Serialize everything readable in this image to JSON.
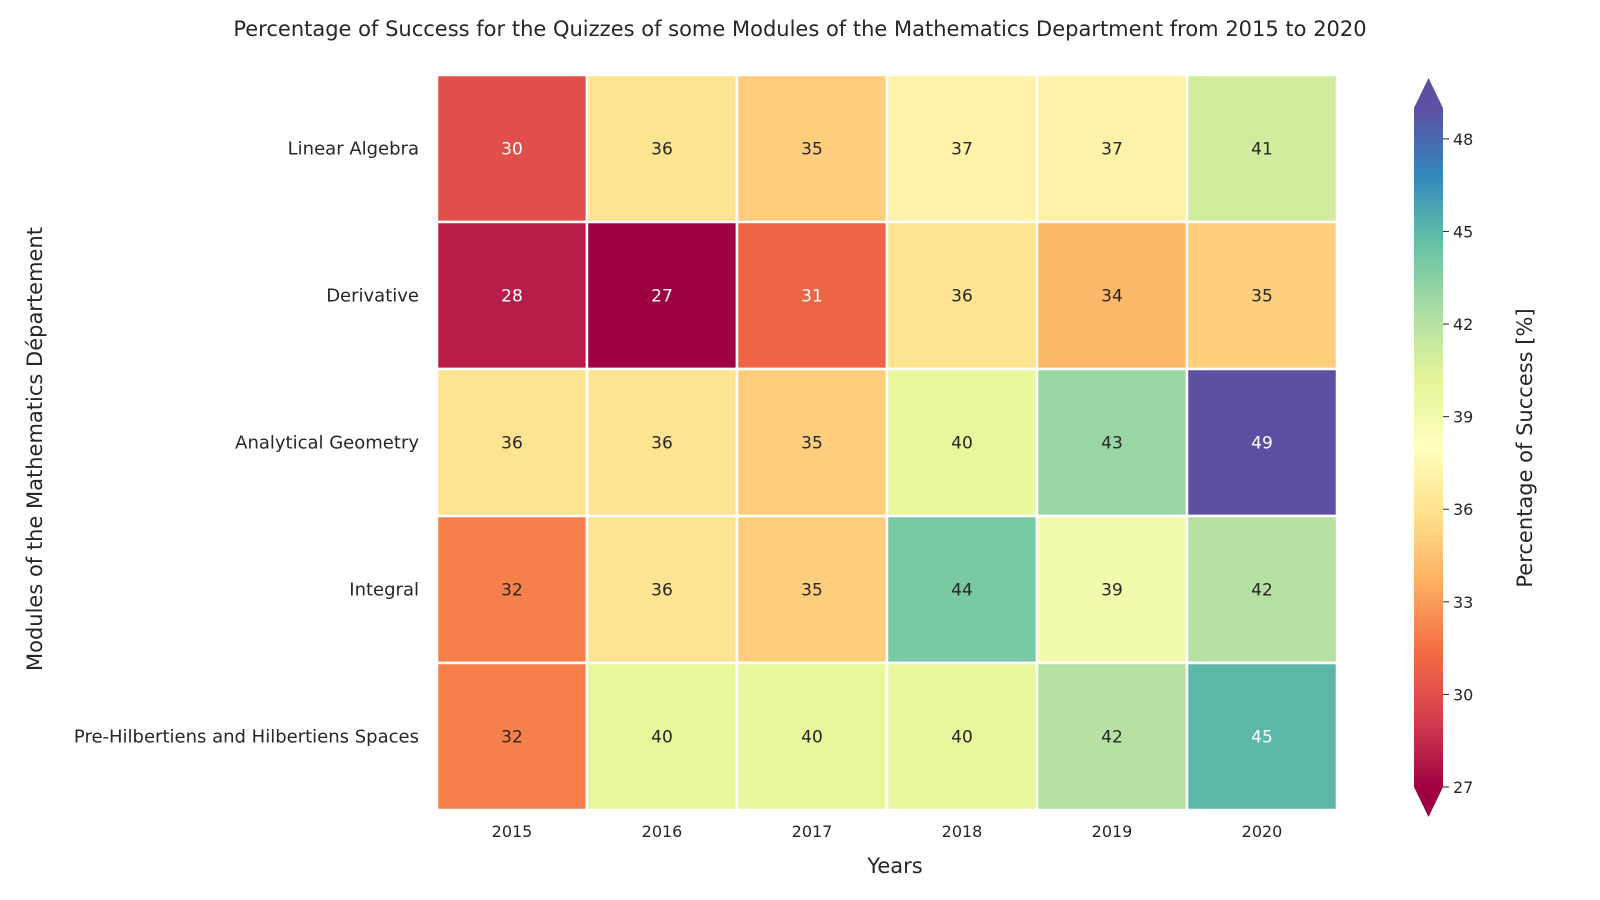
{
  "chart_data": {
    "type": "heatmap",
    "title": "Percentage of Success for the Quizzes of some Modules of the Mathematics Department from 2015 to 2020",
    "xlabel": "Years",
    "ylabel": "Modules of the Mathematics Département",
    "colorbar_label": "Percentage of Success [%]",
    "x": [
      "2015",
      "2016",
      "2017",
      "2018",
      "2019",
      "2020"
    ],
    "y": [
      "Linear Algebra",
      "Derivative",
      "Analytical Geometry",
      "Integral",
      "Pre-Hilbertiens and Hilbertiens Spaces"
    ],
    "values": [
      [
        30,
        36,
        35,
        37,
        37,
        41
      ],
      [
        28,
        27,
        31,
        36,
        34,
        35
      ],
      [
        36,
        36,
        35,
        40,
        43,
        49
      ],
      [
        32,
        36,
        35,
        44,
        39,
        42
      ],
      [
        32,
        40,
        40,
        40,
        42,
        45
      ]
    ],
    "cell_labels": [
      [
        "30",
        "36",
        "35",
        "37",
        "37",
        "41"
      ],
      [
        "28",
        "27",
        "31",
        "36",
        "34",
        "35"
      ],
      [
        "36",
        "36",
        "35",
        "40",
        "43",
        "49"
      ],
      [
        "32",
        "36",
        "35",
        "44",
        "39",
        "42"
      ],
      [
        "32",
        "40",
        "40",
        "40",
        "42",
        "45"
      ]
    ],
    "colorbar": {
      "min": 27,
      "max": 49,
      "ticks": [
        "27",
        "30",
        "33",
        "36",
        "39",
        "42",
        "45",
        "48"
      ],
      "extend": "both"
    },
    "colormap": "Spectral",
    "colors": [
      "#9e0142",
      "#d53e4f",
      "#f46d43",
      "#fdae61",
      "#fee08b",
      "#ffffbf",
      "#e6f598",
      "#abdda4",
      "#66c2a5",
      "#3288bd",
      "#5e4fa2"
    ],
    "grid": false
  }
}
